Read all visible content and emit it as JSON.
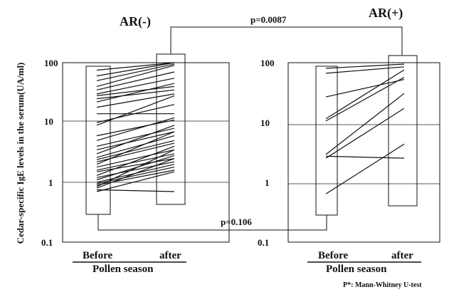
{
  "chart_data": [
    {
      "type": "line",
      "title": "AR(-)",
      "ylabel": "Cedar-specific IgE levels in the serum(UA/ml)",
      "xlabel": "Pollen season",
      "categories": [
        "Before",
        "after"
      ],
      "yscale": "log",
      "ylim": [
        0.1,
        100
      ],
      "yticks": [
        "100",
        "10",
        "1",
        "0.1"
      ],
      "grid": "y-major",
      "series_paired": [
        [
          75,
          100
        ],
        [
          60,
          100
        ],
        [
          50,
          95
        ],
        [
          40,
          90
        ],
        [
          35,
          70
        ],
        [
          30,
          55
        ],
        [
          28,
          40
        ],
        [
          25,
          35
        ],
        [
          22,
          45
        ],
        [
          18,
          30
        ],
        [
          14,
          14
        ],
        [
          10,
          20
        ],
        [
          9,
          28
        ],
        [
          6,
          11
        ],
        [
          5,
          12
        ],
        [
          4,
          8
        ],
        [
          3.5,
          7
        ],
        [
          3,
          9
        ],
        [
          2.6,
          6
        ],
        [
          2.4,
          5
        ],
        [
          2.2,
          4.5
        ],
        [
          2,
          7
        ],
        [
          1.8,
          3.5
        ],
        [
          1.6,
          3
        ],
        [
          1.5,
          2.5
        ],
        [
          1.3,
          4
        ],
        [
          1.2,
          2.2
        ],
        [
          1.1,
          2.8
        ],
        [
          1,
          2
        ],
        [
          0.95,
          1.8
        ],
        [
          0.9,
          1.6
        ],
        [
          0.85,
          3.5
        ],
        [
          0.8,
          2.5
        ],
        [
          0.75,
          0.7
        ],
        [
          0.7,
          1.5
        ]
      ]
    },
    {
      "type": "line",
      "title": "AR(+)",
      "xlabel": "Pollen season",
      "categories": [
        "Before",
        "after"
      ],
      "yscale": "log",
      "ylim": [
        0.1,
        100
      ],
      "yticks": [
        "100",
        "10",
        "1",
        "0.1"
      ],
      "grid": "y-major",
      "series_paired": [
        [
          85,
          100
        ],
        [
          70,
          90
        ],
        [
          28,
          55
        ],
        [
          12,
          80
        ],
        [
          11,
          60
        ],
        [
          3,
          32
        ],
        [
          2.6,
          18
        ],
        [
          2.8,
          2.6
        ],
        [
          0.65,
          4.5
        ]
      ]
    }
  ],
  "comparisons": [
    {
      "label": "p=0.0087"
    },
    {
      "label": "p=0.106"
    }
  ],
  "footnote": "P*: Mann-Whitney U-test"
}
